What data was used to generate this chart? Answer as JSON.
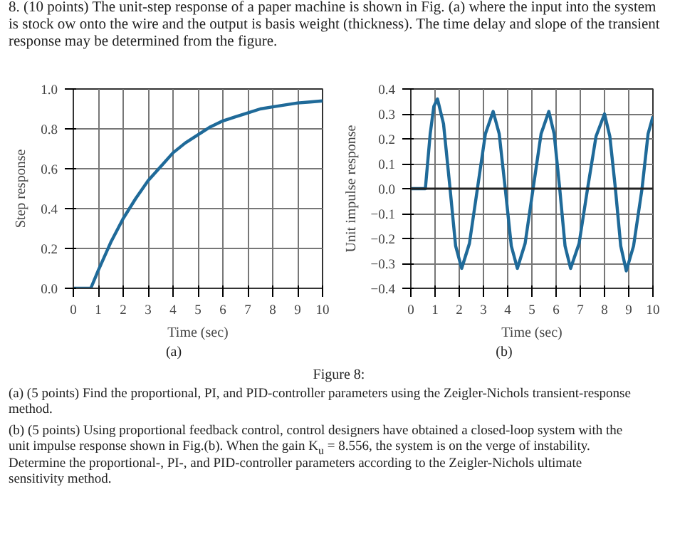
{
  "chart_data": [
    {
      "type": "line",
      "xlabel": "Time (sec)",
      "ylabel": "Step response",
      "annotations": [
        "8. (10 points) The unit-step response of a paper machine is shown in Fig. (a) where the input into the system is stock ow onto the wire and the output is basis weight (thickness). The time delay and slope of the transient response may be determined from the figure.",
        "(a)"
      ],
      "x": [
        0,
        0.7,
        1,
        1.5,
        2,
        2.5,
        3,
        3.5,
        4,
        4.5,
        5,
        5.5,
        6,
        6.5,
        7,
        7.5,
        8,
        8.5,
        9,
        9.5,
        10
      ],
      "series": [
        {
          "color": "#1f6a99",
          "values": [
            0,
            0,
            0.09,
            0.23,
            0.35,
            0.45,
            0.54,
            0.61,
            0.68,
            0.73,
            0.77,
            0.81,
            0.84,
            0.86,
            0.88,
            0.9,
            0.91,
            0.92,
            0.93,
            0.935,
            0.94
          ]
        }
      ],
      "xlim": [
        0,
        10
      ],
      "ylim": [
        0,
        1
      ],
      "xticks": [
        0,
        1,
        2,
        3,
        4,
        5,
        6,
        7,
        8,
        9,
        10
      ],
      "yticks": [
        {
          "value": 0,
          "label": "0.0"
        },
        0.2,
        0.4,
        0.6,
        0.8,
        {
          "value": 1,
          "label": "1.0"
        }
      ],
      "grid": true,
      "line_style": "solid",
      "marker": "none"
    },
    {
      "type": "line",
      "xlabel": "Time (sec)",
      "ylabel": "Unit impulse response",
      "annotations": [
        "(b)",
        "Figure 8:",
        "(a) (5 points) Find the proportional, PI, and PID-controller parameters using the Zeigler-Nichols transient-response method.",
        "(b) (5 points) Using proportional feedback control, control designers have obtained a closed-loop system with the unit impulse response shown in Fig.(b). When the gain K$_{u}$ = 8.556, the system is on the verge of instability. Determine the proportional-, PI-, and PID-controller parameters according to the Zeigler-Nichols ultimate sensitivity method."
      ],
      "x": [
        0,
        0.6,
        0.8,
        0.95,
        1.1,
        1.35,
        1.6,
        1.85,
        2.1,
        2.42,
        2.75,
        3.08,
        3.4,
        3.65,
        3.9,
        4.15,
        4.4,
        4.72,
        5.05,
        5.38,
        5.7,
        5.92,
        6.15,
        6.37,
        6.6,
        6.95,
        7.3,
        7.65,
        8.0,
        8.22,
        8.45,
        8.67,
        8.9,
        9.2,
        9.55,
        9.8,
        10
      ],
      "series": [
        {
          "color": "#1f6a99",
          "values": [
            0,
            0,
            0.22,
            0.33,
            0.36,
            0.26,
            0.02,
            -0.23,
            -0.32,
            -0.22,
            0.0,
            0.22,
            0.31,
            0.22,
            0.0,
            -0.23,
            -0.32,
            -0.22,
            0.0,
            0.22,
            0.31,
            0.22,
            0.0,
            -0.23,
            -0.32,
            -0.22,
            0.0,
            0.21,
            0.3,
            0.21,
            0.0,
            -0.23,
            -0.33,
            -0.23,
            0.0,
            0.22,
            0.29
          ]
        }
      ],
      "xlim": [
        0,
        10
      ],
      "ylim": [
        -0.4,
        0.4
      ],
      "xticks": [
        0,
        1,
        2,
        3,
        4,
        5,
        6,
        7,
        8,
        9,
        10
      ],
      "yticks": [
        {
          "value": -0.4,
          "label": "−0.4"
        },
        {
          "value": -0.3,
          "label": "−0.3"
        },
        {
          "value": -0.2,
          "label": "−0.2"
        },
        {
          "value": -0.1,
          "label": "−0.1"
        },
        {
          "value": 0,
          "label": "0.0"
        },
        0.1,
        0.2,
        0.3,
        0.4
      ],
      "ref_lines": [
        {
          "axis": "y",
          "value": 0,
          "color": "#222222"
        }
      ],
      "grid": true,
      "line_style": "solid",
      "marker": "none"
    }
  ]
}
